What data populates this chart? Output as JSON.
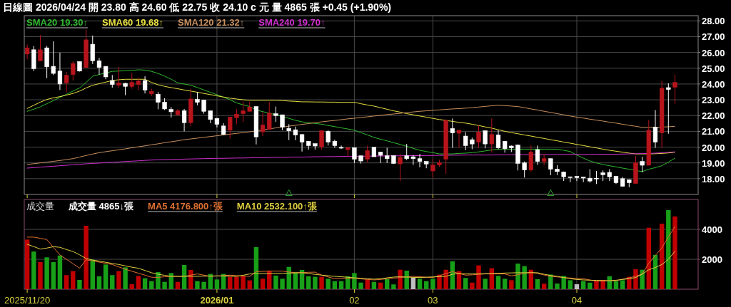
{
  "chart_data": [
    {
      "type": "candlestick",
      "title": "日線圖 2026/04/24 開 23.80 高 24.60 低 22.75 收 24.10 c 元 量 4865 張 +0.45 (+1.90%)",
      "categories": [
        "2025/11/20",
        null,
        null,
        null,
        null,
        null,
        null,
        null,
        null,
        null,
        null,
        null,
        null,
        null,
        null,
        null,
        null,
        null,
        null,
        null,
        null,
        null,
        null,
        null,
        null,
        null,
        null,
        null,
        null,
        "2026/01",
        null,
        null,
        null,
        null,
        null,
        null,
        null,
        null,
        null,
        null,
        null,
        null,
        null,
        null,
        null,
        null,
        null,
        null,
        null,
        null,
        "02",
        null,
        null,
        null,
        null,
        null,
        null,
        null,
        null,
        null,
        null,
        null,
        "03",
        null,
        null,
        null,
        null,
        null,
        null,
        null,
        null,
        null,
        null,
        null,
        null,
        null,
        null,
        null,
        null,
        null,
        null,
        null,
        null,
        null,
        "04",
        null,
        null,
        null,
        null,
        null,
        null,
        null,
        null,
        null,
        null,
        null,
        null,
        null,
        null,
        null
      ],
      "ohlc": [
        [
          25.9,
          26.5,
          25.57,
          26.29
        ],
        [
          26.17,
          26.4,
          24.82,
          24.97
        ],
        [
          25.47,
          27.1,
          25.45,
          26.17
        ],
        [
          26.29,
          26.4,
          24.37,
          25.09
        ],
        [
          25.12,
          26.7,
          24.57,
          24.67
        ],
        [
          24.82,
          25.99,
          23.62,
          24.0
        ],
        [
          24.07,
          24.75,
          23.47,
          24.55
        ],
        [
          24.6,
          25.45,
          24.22,
          25.3
        ],
        [
          25.42,
          25.42,
          24.79,
          24.82
        ],
        [
          25.05,
          27.45,
          25.0,
          26.8
        ],
        [
          26.52,
          27.07,
          25.27,
          25.47
        ],
        [
          25.47,
          25.65,
          24.6,
          25.05
        ],
        [
          25.12,
          25.12,
          24.3,
          24.45
        ],
        [
          24.22,
          24.57,
          23.77,
          23.97
        ],
        [
          23.93,
          25.09,
          23.77,
          24.07
        ],
        [
          24.04,
          24.07,
          23.29,
          23.85
        ],
        [
          23.85,
          24.67,
          23.7,
          24.1
        ],
        [
          23.97,
          24.4,
          23.62,
          24.19
        ],
        [
          24.22,
          24.49,
          23.4,
          23.62
        ],
        [
          23.38,
          23.7,
          23.25,
          23.53
        ],
        [
          23.35,
          23.5,
          22.4,
          22.84
        ],
        [
          22.84,
          23.1,
          22.35,
          22.42
        ],
        [
          22.39,
          22.54,
          21.87,
          22.24
        ],
        [
          22.05,
          22.42,
          22.05,
          22.3
        ],
        [
          22.3,
          22.42,
          21.0,
          21.55
        ],
        [
          21.55,
          23.7,
          21.34,
          23.05
        ],
        [
          23.02,
          23.5,
          22.65,
          22.84
        ],
        [
          22.99,
          22.99,
          22.12,
          22.27
        ],
        [
          22.3,
          22.3,
          21.52,
          21.75
        ],
        [
          21.82,
          21.85,
          21.25,
          21.45
        ],
        [
          21.34,
          21.52,
          20.77,
          20.8
        ],
        [
          21.07,
          21.9,
          20.55,
          21.9
        ],
        [
          21.87,
          22.42,
          21.45,
          22.09
        ],
        [
          22.12,
          22.87,
          21.6,
          22.3
        ],
        [
          22.27,
          22.87,
          22.27,
          22.54
        ],
        [
          22.57,
          22.57,
          20.17,
          20.65
        ],
        [
          20.97,
          22.2,
          20.7,
          21.4
        ],
        [
          21.12,
          22.87,
          21.12,
          22.15
        ],
        [
          22.12,
          22.57,
          21.6,
          22.0
        ],
        [
          22.05,
          22.05,
          21.07,
          21.27
        ],
        [
          21.19,
          21.45,
          20.44,
          21.03
        ],
        [
          21.1,
          21.3,
          20.44,
          20.77
        ],
        [
          20.8,
          20.8,
          19.72,
          20.32
        ],
        [
          20.37,
          20.37,
          19.84,
          20.1
        ],
        [
          20.22,
          20.22,
          19.84,
          20.07
        ],
        [
          20.02,
          21.04,
          19.84,
          21.04
        ],
        [
          21.0,
          21.07,
          20.1,
          20.32
        ],
        [
          20.37,
          20.47,
          19.95,
          20.1
        ],
        [
          19.98,
          20.1,
          19.89,
          19.96
        ],
        [
          19.84,
          20.02,
          19.42,
          19.96
        ],
        [
          19.96,
          19.96,
          18.99,
          19.24
        ],
        [
          19.45,
          19.45,
          18.96,
          19.12
        ],
        [
          19.24,
          20.1,
          19.05,
          19.78
        ],
        [
          19.99,
          19.99,
          19.39,
          19.39
        ],
        [
          19.69,
          19.69,
          18.99,
          19.48
        ],
        [
          19.45,
          19.96,
          18.99,
          19.27
        ],
        [
          19.46,
          19.46,
          18.93,
          18.97
        ],
        [
          18.94,
          19.57,
          17.85,
          19.35
        ],
        [
          19.45,
          20.2,
          19.18,
          19.27
        ],
        [
          19.39,
          19.5,
          18.87,
          19.27
        ],
        [
          19.27,
          19.57,
          18.72,
          19.09
        ],
        [
          19.09,
          19.09,
          18.66,
          18.93
        ],
        [
          18.49,
          19.27,
          18.07,
          18.87
        ],
        [
          18.87,
          19.2,
          18.75,
          19.02
        ],
        [
          19.24,
          21.75,
          18.3,
          21.7
        ],
        [
          21.18,
          21.81,
          19.95,
          20.9
        ],
        [
          20.88,
          21.07,
          19.95,
          21.07
        ],
        [
          20.7,
          20.95,
          19.8,
          20.1
        ],
        [
          20.47,
          20.6,
          19.87,
          20.2
        ],
        [
          20.32,
          21.37,
          19.95,
          20.95
        ],
        [
          21.04,
          21.04,
          19.92,
          20.2
        ],
        [
          20.2,
          21.82,
          19.65,
          20.8
        ],
        [
          20.77,
          21.07,
          19.87,
          19.95
        ],
        [
          20.37,
          20.37,
          19.65,
          19.9
        ],
        [
          20.07,
          20.1,
          19.69,
          19.95
        ],
        [
          20.13,
          20.17,
          18.52,
          18.97
        ],
        [
          19.0,
          19.09,
          18.07,
          18.55
        ],
        [
          18.55,
          20.1,
          18.45,
          19.69
        ],
        [
          19.84,
          20.1,
          18.87,
          19.09
        ],
        [
          19.09,
          19.57,
          18.87,
          19.27
        ],
        [
          19.27,
          19.27,
          18.22,
          18.6
        ],
        [
          18.6,
          18.85,
          18.22,
          18.45
        ],
        [
          18.42,
          18.45,
          17.85,
          18.12
        ],
        [
          18.12,
          18.12,
          17.78,
          18.07
        ],
        [
          18.15,
          18.15,
          17.85,
          18.07
        ],
        [
          18.1,
          18.1,
          17.78,
          18.04
        ],
        [
          18.03,
          18.6,
          17.75,
          17.85
        ],
        [
          18.03,
          18.49,
          17.66,
          18.0
        ],
        [
          18.37,
          18.52,
          17.85,
          18.25
        ],
        [
          18.4,
          18.6,
          17.85,
          18.12
        ],
        [
          18.15,
          18.15,
          17.66,
          17.75
        ],
        [
          18.0,
          18.1,
          17.48,
          17.52
        ],
        [
          17.93,
          17.96,
          17.45,
          17.75
        ],
        [
          17.7,
          19.45,
          17.66,
          19.0
        ],
        [
          19.09,
          19.39,
          18.4,
          18.85
        ],
        [
          18.85,
          21.72,
          18.85,
          21.07
        ],
        [
          21.27,
          22.35,
          19.95,
          20.32
        ],
        [
          20.9,
          24.18,
          19.95,
          23.73
        ],
        [
          23.77,
          24.04,
          20.85,
          23.65
        ],
        [
          23.8,
          24.6,
          22.75,
          24.1
        ]
      ],
      "colors": [
        "#b8141c",
        "#ffffff",
        "#b8141c",
        "#ffffff",
        "#ffffff",
        "#ffffff",
        "#b8141c",
        "#b8141c",
        "#ffffff",
        "#b8141c",
        "#ffffff",
        "#ffffff",
        "#ffffff",
        "#ffffff",
        "#b8141c",
        "#ffffff",
        "#b8141c",
        "#b8141c",
        "#ffffff",
        "#b8141c",
        "#ffffff",
        "#ffffff",
        "#ffffff",
        "#b8141c",
        "#ffffff",
        "#b8141c",
        "#ffffff",
        "#ffffff",
        "#ffffff",
        "#ffffff",
        "#ffffff",
        "#b8141c",
        "#b8141c",
        "#b8141c",
        "#b8141c",
        "#ffffff",
        "#b8141c",
        "#b8141c",
        "#ffffff",
        "#ffffff",
        "#ffffff",
        "#ffffff",
        "#ffffff",
        "#ffffff",
        "#ffffff",
        "#b8141c",
        "#ffffff",
        "#ffffff",
        "#ffffff",
        "#b8141c",
        "#ffffff",
        "#ffffff",
        "#b8141c",
        "#ffffff",
        "#ffffff",
        "#ffffff",
        "#ffffff",
        "#b8141c",
        "#ffffff",
        "#ffffff",
        "#ffffff",
        "#ffffff",
        "#b8141c",
        "#b8141c",
        "#b8141c",
        "#ffffff",
        "#b8141c",
        "#ffffff",
        "#ffffff",
        "#b8141c",
        "#ffffff",
        "#b8141c",
        "#ffffff",
        "#ffffff",
        "#ffffff",
        "#ffffff",
        "#ffffff",
        "#b8141c",
        "#ffffff",
        "#b8141c",
        "#ffffff",
        "#ffffff",
        "#ffffff",
        "#ffffff",
        "#ffffff",
        "#ffffff",
        "#ffffff",
        "#ffffff",
        "#ffffff",
        "#ffffff",
        "#ffffff",
        "#ffffff",
        "#ffffff",
        "#b8141c",
        "#ffffff",
        "#b8141c",
        "#ffffff",
        "#b8141c",
        "#ffffff",
        "#b8141c"
      ],
      "series": [
        {
          "name": "SMA20 19.30↑",
          "type": "line",
          "color": "#30b830",
          "values": [
            22.27,
            22.4,
            22.55,
            22.75,
            22.95,
            23.15,
            23.35,
            23.55,
            23.75,
            24.1,
            24.49,
            24.6,
            24.7,
            24.8,
            24.82,
            24.84,
            24.86,
            24.9,
            24.88,
            24.8,
            24.67,
            24.5,
            24.3,
            24.07,
            24.0,
            23.92,
            23.78,
            23.62,
            23.47,
            23.32,
            23.17,
            23.0,
            22.8,
            22.68,
            22.57,
            22.35,
            22.25,
            22.15,
            22.05,
            21.95,
            21.82,
            21.7,
            21.6,
            21.55,
            21.5,
            21.45,
            21.37,
            21.3,
            21.22,
            21.15,
            21.07,
            20.92,
            20.77,
            20.62,
            20.5,
            20.4,
            20.28,
            20.17,
            20.05,
            19.92,
            19.8,
            19.72,
            19.65,
            19.57,
            19.57,
            19.57,
            19.6,
            19.62,
            19.65,
            19.7,
            19.76,
            19.82,
            19.87,
            19.87,
            19.87,
            19.87,
            19.87,
            19.87,
            19.87,
            19.87,
            19.87,
            19.87,
            19.8,
            19.72,
            19.5,
            19.3,
            19.12,
            19.0,
            18.9,
            18.82,
            18.75,
            18.67,
            18.6,
            18.52,
            18.45,
            18.6,
            18.7,
            18.82,
            19.05,
            19.3
          ]
        },
        {
          "name": "SMA60 19.68↑",
          "type": "line",
          "color": "#e8e040",
          "values": [
            22.45,
            22.65,
            22.85,
            23.02,
            23.12,
            23.2,
            23.3,
            23.4,
            23.55,
            23.75,
            23.92,
            24.02,
            24.12,
            24.22,
            24.27,
            24.3,
            24.3,
            24.3,
            24.3,
            24.1,
            23.95,
            23.85,
            23.77,
            23.7,
            23.62,
            23.55,
            23.48,
            23.4,
            23.33,
            23.25,
            23.17,
            23.1,
            23.05,
            23.0,
            22.97,
            22.97,
            22.97,
            22.97,
            22.97,
            22.95,
            22.92,
            22.9,
            22.87,
            22.87,
            22.86,
            22.86,
            22.85,
            22.85,
            22.84,
            22.84,
            22.84,
            22.75,
            22.67,
            22.6,
            22.5,
            22.4,
            22.3,
            22.22,
            22.12,
            22.05,
            21.97,
            21.9,
            21.82,
            21.75,
            21.69,
            21.63,
            21.57,
            21.52,
            21.45,
            21.37,
            21.28,
            21.2,
            21.1,
            21.0,
            20.92,
            20.85,
            20.77,
            20.7,
            20.62,
            20.55,
            20.47,
            20.4,
            20.32,
            20.25,
            20.17,
            20.1,
            20.02,
            19.95,
            19.87,
            19.8,
            19.74,
            19.68,
            19.62,
            19.57,
            19.57,
            19.57,
            19.58,
            19.6,
            19.63,
            19.68
          ]
        },
        {
          "name": "SMA120 21.32↑",
          "type": "line",
          "color": "#c89060",
          "values": [
            18.9,
            18.95,
            19.0,
            19.05,
            19.1,
            19.15,
            19.21,
            19.27,
            19.37,
            19.47,
            19.56,
            19.65,
            19.71,
            19.77,
            19.83,
            19.89,
            19.96,
            20.02,
            20.08,
            20.15,
            20.21,
            20.28,
            20.34,
            20.4,
            20.47,
            20.52,
            20.57,
            20.62,
            20.67,
            20.72,
            20.77,
            20.82,
            20.87,
            20.92,
            20.97,
            21.03,
            21.09,
            21.15,
            21.22,
            21.27,
            21.33,
            21.38,
            21.44,
            21.49,
            21.55,
            21.6,
            21.65,
            21.69,
            21.74,
            21.79,
            21.83,
            21.88,
            21.92,
            21.97,
            22.01,
            22.06,
            22.1,
            22.14,
            22.19,
            22.23,
            22.27,
            22.3,
            22.33,
            22.36,
            22.39,
            22.42,
            22.44,
            22.47,
            22.5,
            22.54,
            22.58,
            22.62,
            22.65,
            22.63,
            22.6,
            22.57,
            22.5,
            22.42,
            22.35,
            22.27,
            22.2,
            22.12,
            22.05,
            21.97,
            21.9,
            21.84,
            21.77,
            21.71,
            21.65,
            21.58,
            21.52,
            21.45,
            21.38,
            21.32,
            21.25,
            21.25,
            21.26,
            21.27,
            21.29,
            21.32
          ]
        },
        {
          "name": "SMA240 19.70↑",
          "type": "line",
          "color": "#d030d0",
          "values": [
            18.67,
            18.7,
            18.73,
            18.76,
            18.79,
            18.82,
            18.85,
            18.88,
            18.91,
            18.94,
            18.97,
            18.99,
            19.02,
            19.04,
            19.06,
            19.09,
            19.11,
            19.13,
            19.16,
            19.18,
            19.2,
            19.21,
            19.22,
            19.23,
            19.24,
            19.25,
            19.26,
            19.27,
            19.28,
            19.29,
            19.29,
            19.3,
            19.31,
            19.31,
            19.32,
            19.33,
            19.33,
            19.34,
            19.35,
            19.35,
            19.36,
            19.37,
            19.37,
            19.38,
            19.39,
            19.39,
            19.4,
            19.4,
            19.41,
            19.42,
            19.42,
            19.42,
            19.43,
            19.43,
            19.44,
            19.44,
            19.45,
            19.45,
            19.46,
            19.46,
            19.46,
            19.47,
            19.47,
            19.48,
            19.48,
            19.49,
            19.49,
            19.5,
            19.5,
            19.5,
            19.5,
            19.5,
            19.51,
            19.51,
            19.51,
            19.52,
            19.52,
            19.52,
            19.52,
            19.53,
            19.53,
            19.53,
            19.53,
            19.54,
            19.54,
            19.54,
            19.54,
            19.55,
            19.55,
            19.55,
            19.55,
            19.56,
            19.57,
            19.58,
            19.59,
            19.6,
            19.62,
            19.64,
            19.67,
            19.7
          ]
        },
        {
          "type": "scatter",
          "marker": "triangle",
          "color": "#2aa02a",
          "values": [
            null,
            null,
            null,
            null,
            null,
            null,
            null,
            null,
            null,
            null,
            null,
            null,
            null,
            null,
            null,
            null,
            null,
            null,
            null,
            null,
            null,
            null,
            null,
            null,
            null,
            null,
            null,
            null,
            null,
            null,
            null,
            null,
            null,
            null,
            null,
            null,
            null,
            null,
            null,
            null,
            17.07,
            null,
            null,
            null,
            null,
            null,
            null,
            null,
            null,
            null,
            null,
            null,
            null,
            null,
            null,
            null,
            null,
            null,
            null,
            null,
            null,
            null,
            null,
            null,
            null,
            null,
            null,
            null,
            null,
            null,
            null,
            null,
            null,
            null,
            null,
            null,
            null,
            null,
            null,
            null,
            17.07,
            null,
            null,
            null,
            null,
            null,
            null,
            null,
            null,
            null,
            null,
            null,
            null,
            null,
            null,
            null,
            null,
            null,
            null,
            null
          ]
        }
      ],
      "ylim": [
        17.0,
        28.33
      ],
      "yticks": [
        {
          "value": 18,
          "label": "18.00"
        },
        {
          "value": 19,
          "label": "19.00"
        },
        {
          "value": 20,
          "label": "20.00"
        },
        {
          "value": 21,
          "label": "21.00"
        },
        {
          "value": 22,
          "label": "22.00"
        },
        {
          "value": 23,
          "label": "23.00"
        },
        {
          "value": 24,
          "label": "24.00"
        },
        {
          "value": 25,
          "label": "25.00"
        },
        {
          "value": 26,
          "label": "26.00"
        },
        {
          "value": 27,
          "label": "27.00"
        },
        {
          "value": 28,
          "label": "28.00"
        }
      ],
      "grid": true,
      "tick_labels": "y",
      "legend": "top left"
    },
    {
      "type": "bar",
      "title": "成交量",
      "annotations": [
        "成交量 4865↓張"
      ],
      "categories": [
        "2025/11/20",
        null,
        null,
        null,
        null,
        null,
        null,
        null,
        null,
        null,
        null,
        null,
        null,
        null,
        null,
        null,
        null,
        null,
        null,
        null,
        null,
        null,
        null,
        null,
        null,
        null,
        null,
        null,
        null,
        "2026/01",
        null,
        null,
        null,
        null,
        null,
        null,
        null,
        null,
        null,
        null,
        null,
        null,
        null,
        null,
        null,
        null,
        null,
        null,
        null,
        null,
        "02",
        null,
        null,
        null,
        null,
        null,
        null,
        null,
        null,
        null,
        null,
        null,
        "03",
        null,
        null,
        null,
        null,
        null,
        null,
        null,
        null,
        null,
        null,
        null,
        null,
        null,
        null,
        null,
        null,
        null,
        null,
        null,
        null,
        null,
        "04",
        null,
        null,
        null,
        null,
        null,
        null,
        null,
        null,
        null,
        null,
        null,
        null,
        null,
        null,
        null
      ],
      "values": [
        3320,
        2520,
        1810,
        2130,
        1810,
        2250,
        940,
        1210,
        620,
        4240,
        1970,
        860,
        1650,
        940,
        1210,
        1460,
        330,
        890,
        730,
        540,
        1140,
        490,
        1080,
        490,
        1620,
        1290,
        540,
        490,
        1020,
        650,
        1020,
        830,
        830,
        860,
        590,
        2810,
        700,
        1240,
        910,
        700,
        1490,
        1140,
        1290,
        860,
        830,
        830,
        700,
        540,
        540,
        860,
        1080,
        440,
        650,
        490,
        440,
        670,
        320,
        1300,
        1240,
        780,
        700,
        540,
        700,
        970,
        1300,
        1870,
        1210,
        750,
        440,
        1590,
        700,
        1400,
        890,
        700,
        600,
        1710,
        1540,
        1300,
        670,
        370,
        980,
        380,
        890,
        600,
        330,
        540,
        440,
        540,
        620,
        860,
        540,
        600,
        830,
        1330,
        1300,
        4110,
        2290,
        4380,
        5290,
        4865
      ],
      "colors": [
        "#c00000",
        "#18a018",
        "#c00000",
        "#18a018",
        "#18a018",
        "#18a018",
        "#c00000",
        "#c00000",
        "#18a018",
        "#c00000",
        "#18a018",
        "#18a018",
        "#18a018",
        "#18a018",
        "#c00000",
        "#18a018",
        "#c00000",
        "#c00000",
        "#18a018",
        "#18a018",
        "#18a018",
        "#18a018",
        "#18a018",
        "#c00000",
        "#18a018",
        "#c00000",
        "#18a018",
        "#18a018",
        "#18a018",
        "#18a018",
        "#18a018",
        "#c00000",
        "#c00000",
        "#c00000",
        "#c00000",
        "#18a018",
        "#c00000",
        "#c00000",
        "#18a018",
        "#18a018",
        "#18a018",
        "#18a018",
        "#18a018",
        "#18a018",
        "#18a018",
        "#c00000",
        "#18a018",
        "#18a018",
        "#18a018",
        "#18a018",
        "#18a018",
        "#18a018",
        "#c00000",
        "#18a018",
        "#c00000",
        "#18a018",
        "#18a018",
        "#c00000",
        "#18a018",
        "#bfbfbf",
        "#18a018",
        "#18a018",
        "#18a018",
        "#c00000",
        "#c00000",
        "#18a018",
        "#c00000",
        "#18a018",
        "#c00000",
        "#c00000",
        "#18a018",
        "#c00000",
        "#18a018",
        "#18a018",
        "#c00000",
        "#18a018",
        "#18a018",
        "#c00000",
        "#18a018",
        "#c00000",
        "#18a018",
        "#18a018",
        "#18a018",
        "#18a018",
        "#bfbfbf",
        "#18a018",
        "#18a018",
        "#c00000",
        "#c00000",
        "#18a018",
        "#18a018",
        "#18a018",
        "#c00000",
        "#c00000",
        "#18a018",
        "#c00000",
        "#18a018",
        "#c00000",
        "#18a018",
        "#c00000"
      ],
      "series": [
        {
          "name": "MA5 4176.800↑張",
          "type": "line",
          "color": "#e07030",
          "values": [
            3480,
            3480,
            3400,
            3320,
            2800,
            2290,
            2000,
            1700,
            1410,
            1970,
            1890,
            1810,
            1730,
            1650,
            1490,
            1330,
            1200,
            1070,
            940,
            800,
            790,
            830,
            860,
            860,
            860,
            940,
            1020,
            940,
            860,
            880,
            910,
            940,
            910,
            880,
            860,
            1170,
            1190,
            1210,
            1210,
            1210,
            1150,
            1100,
            1110,
            1130,
            1140,
            940,
            820,
            700,
            710,
            720,
            730,
            690,
            650,
            620,
            650,
            700,
            740,
            780,
            820,
            860,
            830,
            800,
            780,
            900,
            1040,
            1170,
            1050,
            940,
            960,
            990,
            1020,
            1020,
            1020,
            1020,
            890,
            970,
            1060,
            1140,
            1050,
            950,
            860,
            820,
            780,
            750,
            720,
            700,
            620,
            540,
            550,
            560,
            570,
            670,
            760,
            860,
            1020,
            1730,
            2250,
            2760,
            3500,
            4176.8
          ]
        },
        {
          "name": "MA10 2532.100↑張",
          "type": "line",
          "color": "#e0d040",
          "values": [
            3000,
            2850,
            2680,
            2750,
            2840,
            2800,
            2650,
            2520,
            2300,
            2050,
            1950,
            1880,
            1800,
            1720,
            1650,
            1560,
            1470,
            1400,
            1250,
            1100,
            1000,
            930,
            860,
            860,
            860,
            860,
            860,
            870,
            880,
            890,
            880,
            870,
            860,
            930,
            1020,
            1030,
            1040,
            1050,
            1050,
            1060,
            1080,
            1090,
            1100,
            1050,
            990,
            940,
            900,
            860,
            830,
            800,
            760,
            730,
            700,
            670,
            700,
            760,
            810,
            830,
            810,
            790,
            780,
            800,
            820,
            840,
            860,
            1000,
            1040,
            1020,
            1020,
            1030,
            1040,
            1050,
            1060,
            1080,
            1090,
            1100,
            1100,
            1100,
            1100,
            1000,
            920,
            860,
            780,
            700,
            650,
            620,
            600,
            590,
            580,
            570,
            600,
            650,
            700,
            780,
            1000,
            1300,
            1450,
            1650,
            2000,
            2532.1
          ]
        }
      ],
      "ylim": [
        0,
        6000
      ],
      "yticks": [
        2000,
        4000
      ],
      "grid": true,
      "legend": "top left"
    }
  ]
}
